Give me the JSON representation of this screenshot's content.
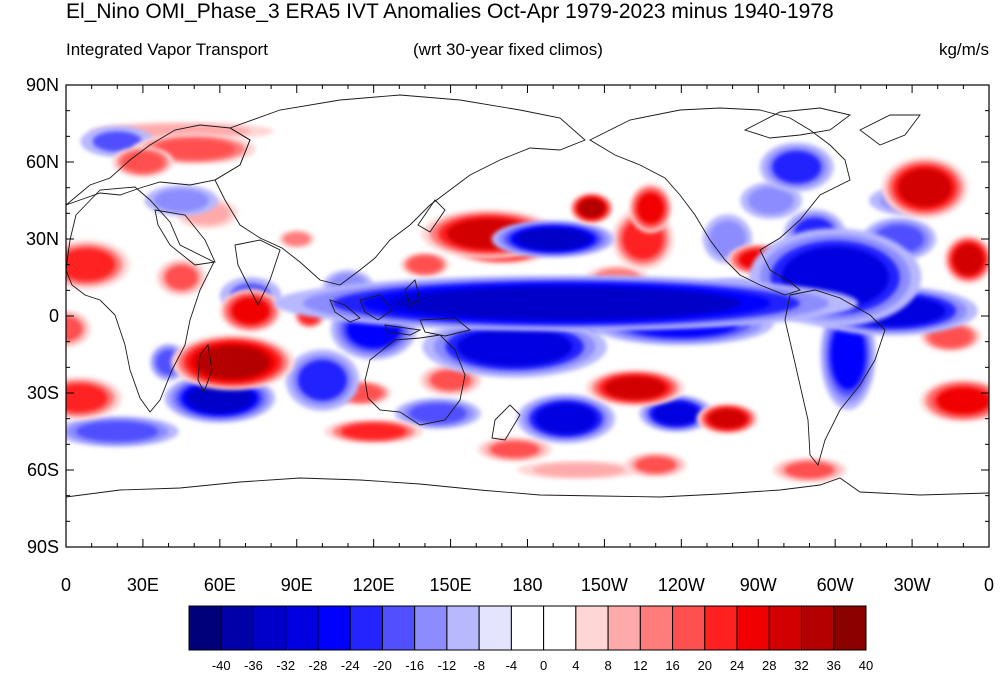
{
  "title": "El_Nino OMI_Phase_3 ERA5 IVT Anomalies Oct-Apr 1979-2023 minus 1940-1978",
  "subtitle_left": "Integrated Vapor Transport",
  "subtitle_center": "(wrt 30-year fixed climos)",
  "subtitle_right": "kg/m/s",
  "axes": {
    "x_ticks": [
      "0",
      "30E",
      "60E",
      "90E",
      "120E",
      "150E",
      "180",
      "150W",
      "120W",
      "90W",
      "60W",
      "30W",
      "0"
    ],
    "y_ticks": [
      "90N",
      "60N",
      "30N",
      "0",
      "30S",
      "60S",
      "90S"
    ]
  },
  "colorbar": {
    "labels": [
      "-40",
      "-36",
      "-32",
      "-28",
      "-24",
      "-20",
      "-16",
      "-12",
      "-8",
      "-4",
      "0",
      "4",
      "8",
      "12",
      "16",
      "20",
      "24",
      "28",
      "32",
      "36",
      "40"
    ],
    "colors": [
      "#00007a",
      "#0000a8",
      "#0000c8",
      "#0000e0",
      "#0000ff",
      "#2424ff",
      "#5050ff",
      "#8c8cff",
      "#b8b8ff",
      "#e4e4ff",
      "#ffffff",
      "#ffffff",
      "#ffd6d6",
      "#ffaaaa",
      "#ff7c7c",
      "#ff5050",
      "#ff2020",
      "#f00000",
      "#d20000",
      "#b40000",
      "#8c0000"
    ]
  },
  "anomaly_blobs": [
    {
      "lon": 195,
      "lat": 5,
      "rx": 95,
      "ry": 9,
      "v": -34
    },
    {
      "lon": 175,
      "lat": -12,
      "rx": 30,
      "ry": 10,
      "v": -30
    },
    {
      "lon": 240,
      "lat": -3,
      "rx": 30,
      "ry": 7,
      "v": -26
    },
    {
      "lon": 300,
      "lat": 15,
      "rx": 28,
      "ry": 16,
      "v": -30
    },
    {
      "lon": 322,
      "lat": 2,
      "rx": 28,
      "ry": 8,
      "v": -28
    },
    {
      "lon": 292,
      "lat": 32,
      "rx": 10,
      "ry": 8,
      "v": -22
    },
    {
      "lon": 325,
      "lat": 30,
      "rx": 12,
      "ry": 7,
      "v": -18
    },
    {
      "lon": 305,
      "lat": -15,
      "rx": 9,
      "ry": 18,
      "v": -26
    },
    {
      "lon": 190,
      "lat": 30,
      "rx": 20,
      "ry": 6,
      "v": -32
    },
    {
      "lon": 60,
      "lat": -32,
      "rx": 18,
      "ry": 8,
      "v": -32
    },
    {
      "lon": 120,
      "lat": -5,
      "rx": 14,
      "ry": 10,
      "v": -24
    },
    {
      "lon": 100,
      "lat": -25,
      "rx": 12,
      "ry": 10,
      "v": -22
    },
    {
      "lon": 195,
      "lat": -40,
      "rx": 16,
      "ry": 8,
      "v": -28
    },
    {
      "lon": 238,
      "lat": -38,
      "rx": 12,
      "ry": 6,
      "v": -28
    },
    {
      "lon": 145,
      "lat": -38,
      "rx": 14,
      "ry": 5,
      "v": -18
    },
    {
      "lon": 20,
      "lat": -45,
      "rx": 20,
      "ry": 5,
      "v": -18
    },
    {
      "lon": 20,
      "lat": 68,
      "rx": 12,
      "ry": 5,
      "v": -16
    },
    {
      "lon": 45,
      "lat": 45,
      "rx": 12,
      "ry": 5,
      "v": -12
    },
    {
      "lon": 285,
      "lat": 58,
      "rx": 12,
      "ry": 8,
      "v": -20
    },
    {
      "lon": 72,
      "lat": 8,
      "rx": 10,
      "ry": 6,
      "v": -16
    },
    {
      "lon": 275,
      "lat": 45,
      "rx": 10,
      "ry": 6,
      "v": -12
    },
    {
      "lon": 330,
      "lat": 45,
      "rx": 14,
      "ry": 5,
      "v": -12
    },
    {
      "lon": 165,
      "lat": 32,
      "rx": 22,
      "ry": 8,
      "v": 30
    },
    {
      "lon": 170,
      "lat": 25,
      "rx": 15,
      "ry": 4,
      "v": 22
    },
    {
      "lon": 205,
      "lat": 42,
      "rx": 7,
      "ry": 5,
      "v": 32
    },
    {
      "lon": 228,
      "lat": 42,
      "rx": 7,
      "ry": 8,
      "v": 26
    },
    {
      "lon": 65,
      "lat": -18,
      "rx": 20,
      "ry": 9,
      "v": 34
    },
    {
      "lon": 72,
      "lat": 2,
      "rx": 10,
      "ry": 7,
      "v": 26
    },
    {
      "lon": 95,
      "lat": 0,
      "rx": 5,
      "ry": 4,
      "v": 20
    },
    {
      "lon": 130,
      "lat": 3,
      "rx": 12,
      "ry": 3,
      "v": 28
    },
    {
      "lon": 222,
      "lat": -28,
      "rx": 16,
      "ry": 6,
      "v": 30
    },
    {
      "lon": 258,
      "lat": -40,
      "rx": 10,
      "ry": 5,
      "v": 28
    },
    {
      "lon": 8,
      "lat": 20,
      "rx": 14,
      "ry": 8,
      "v": 22
    },
    {
      "lon": 352,
      "lat": 22,
      "rx": 8,
      "ry": 8,
      "v": 30
    },
    {
      "lon": 335,
      "lat": 50,
      "rx": 14,
      "ry": 10,
      "v": 28
    },
    {
      "lon": 270,
      "lat": 22,
      "rx": 10,
      "ry": 5,
      "v": 24
    },
    {
      "lon": 50,
      "lat": 65,
      "rx": 20,
      "ry": 5,
      "v": 18
    },
    {
      "lon": 45,
      "lat": 72,
      "rx": 30,
      "ry": 3,
      "v": 10
    },
    {
      "lon": 5,
      "lat": -32,
      "rx": 14,
      "ry": 7,
      "v": 22
    },
    {
      "lon": 350,
      "lat": -33,
      "rx": 14,
      "ry": 7,
      "v": 24
    },
    {
      "lon": 0,
      "lat": -5,
      "rx": 8,
      "ry": 6,
      "v": 16
    },
    {
      "lon": 345,
      "lat": -8,
      "rx": 10,
      "ry": 5,
      "v": 18
    },
    {
      "lon": 160,
      "lat": -10,
      "rx": 6,
      "ry": 3,
      "v": 20
    },
    {
      "lon": 225,
      "lat": 30,
      "rx": 10,
      "ry": 10,
      "v": 22
    },
    {
      "lon": 200,
      "lat": -3,
      "rx": 12,
      "ry": 4,
      "v": -20
    },
    {
      "lon": 90,
      "lat": 30,
      "rx": 6,
      "ry": 3,
      "v": 14
    },
    {
      "lon": 45,
      "lat": 15,
      "rx": 8,
      "ry": 6,
      "v": 16
    },
    {
      "lon": 30,
      "lat": 60,
      "rx": 10,
      "ry": 5,
      "v": 18
    },
    {
      "lon": 140,
      "lat": 20,
      "rx": 8,
      "ry": 4,
      "v": 18
    },
    {
      "lon": 55,
      "lat": 40,
      "rx": 10,
      "ry": 5,
      "v": 10
    },
    {
      "lon": 120,
      "lat": -45,
      "rx": 16,
      "ry": 4,
      "v": 20
    },
    {
      "lon": 150,
      "lat": -25,
      "rx": 10,
      "ry": 5,
      "v": 16
    },
    {
      "lon": 175,
      "lat": -52,
      "rx": 12,
      "ry": 4,
      "v": 16
    },
    {
      "lon": 230,
      "lat": -58,
      "rx": 10,
      "ry": 4,
      "v": 16
    },
    {
      "lon": 290,
      "lat": -60,
      "rx": 12,
      "ry": 4,
      "v": 16
    },
    {
      "lon": 260,
      "lat": 10,
      "rx": 12,
      "ry": 4,
      "v": -14
    },
    {
      "lon": 215,
      "lat": 15,
      "rx": 10,
      "ry": 4,
      "v": 14
    },
    {
      "lon": 258,
      "lat": 30,
      "rx": 8,
      "ry": 8,
      "v": -12
    },
    {
      "lon": 110,
      "lat": 12,
      "rx": 8,
      "ry": 5,
      "v": -14
    },
    {
      "lon": 115,
      "lat": -30,
      "rx": 10,
      "ry": 4,
      "v": 18
    },
    {
      "lon": 40,
      "lat": -18,
      "rx": 6,
      "ry": 6,
      "v": -18
    },
    {
      "lon": 200,
      "lat": -60,
      "rx": 20,
      "ry": 3,
      "v": 10
    }
  ]
}
